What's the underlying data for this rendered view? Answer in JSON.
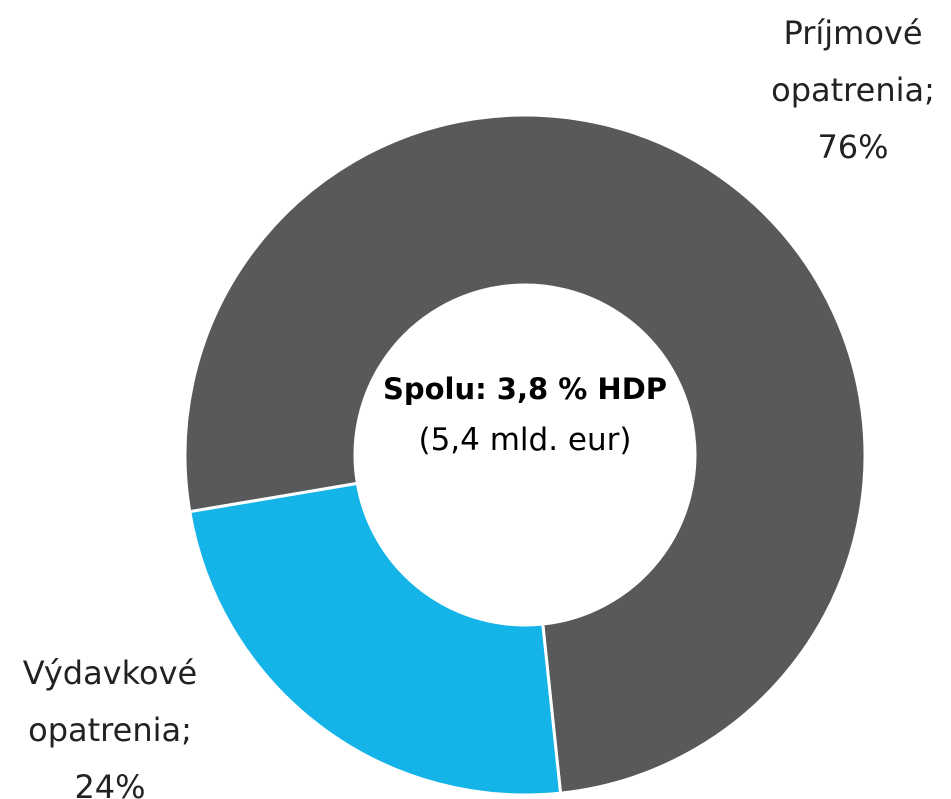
{
  "chart_data": {
    "type": "donut",
    "categories": [
      "Príjmové opatrenia;",
      "Výdavkové opatrenia;"
    ],
    "values": [
      76,
      24
    ],
    "value_labels": [
      "76%",
      "24%"
    ],
    "colors": [
      "#58595b",
      "#14b4e8"
    ],
    "center_title": "Spolu: 3,8 % HDP",
    "center_subtitle": "(5,4 mld. eur)"
  }
}
